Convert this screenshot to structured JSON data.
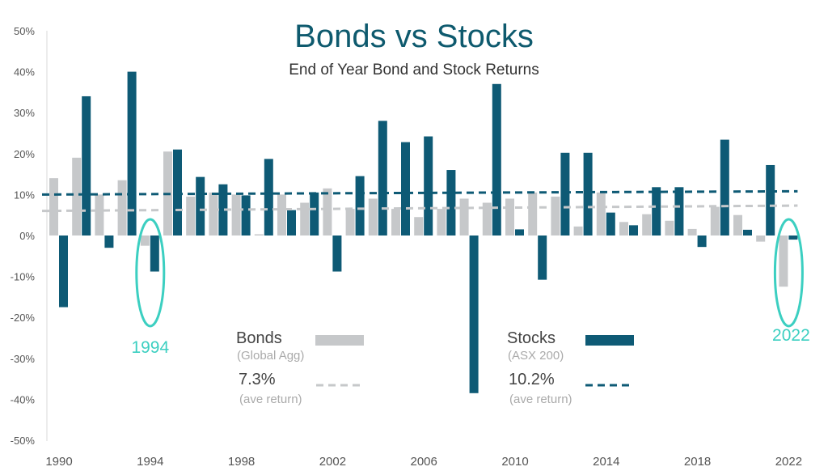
{
  "chart_data": {
    "type": "bar",
    "title": "Bonds vs Stocks",
    "subtitle": "End of Year Bond and Stock Returns",
    "ylim": [
      -50,
      50
    ],
    "y_ticks": [
      "50%",
      "40%",
      "30%",
      "20%",
      "10%",
      "0%",
      "-10%",
      "-20%",
      "-30%",
      "-40%",
      "-50%"
    ],
    "x_tick_labels": [
      "1990",
      "1994",
      "1998",
      "2002",
      "2006",
      "2010",
      "2014",
      "2018",
      "2022"
    ],
    "categories": [
      1990,
      1991,
      1992,
      1993,
      1994,
      1995,
      1996,
      1997,
      1998,
      1999,
      2000,
      2001,
      2002,
      2003,
      2004,
      2005,
      2006,
      2007,
      2008,
      2009,
      2010,
      2011,
      2012,
      2013,
      2014,
      2015,
      2016,
      2017,
      2018,
      2019,
      2020,
      2021,
      2022
    ],
    "series": [
      {
        "name": "Bonds",
        "sub": "(Global Agg)",
        "color": "#c6c8ca",
        "values": [
          14,
          19,
          10,
          13.5,
          -2.5,
          20.5,
          9.5,
          10.5,
          10,
          0.3,
          10,
          8,
          11.5,
          6.5,
          9,
          6.5,
          4.5,
          6.5,
          9,
          8,
          9,
          10.5,
          9.5,
          2.2,
          10.5,
          3.3,
          5.2,
          3.6,
          1.6,
          7,
          5,
          -1.5,
          -12.5
        ]
      },
      {
        "name": "Stocks",
        "sub": "(ASX 200)",
        "color": "#0e5a75",
        "values": [
          -17.5,
          34,
          -3,
          40,
          -8.8,
          21,
          14.3,
          12.5,
          9.8,
          18.7,
          6.2,
          10.5,
          -8.8,
          14.5,
          28,
          22.8,
          24.2,
          16,
          -38.5,
          37,
          1.5,
          -10.8,
          20.2,
          20.2,
          5.6,
          2.5,
          11.8,
          11.8,
          -2.8,
          23.4,
          1.4,
          17.2,
          -1
        ]
      }
    ],
    "averages": [
      {
        "series": "Bonds",
        "label": "7.3%",
        "sub": "(ave return)",
        "start": 6,
        "end": 7.3,
        "color": "#c6c8ca"
      },
      {
        "series": "Stocks",
        "label": "10.2%",
        "sub": "(ave return)",
        "start": 10,
        "end": 10.8,
        "color": "#0e5a75"
      }
    ],
    "callouts": [
      {
        "label": "1994",
        "year": 1994,
        "color": "#3ccfc1"
      },
      {
        "label": "2022",
        "year": 2022,
        "color": "#3ccfc1"
      }
    ]
  }
}
